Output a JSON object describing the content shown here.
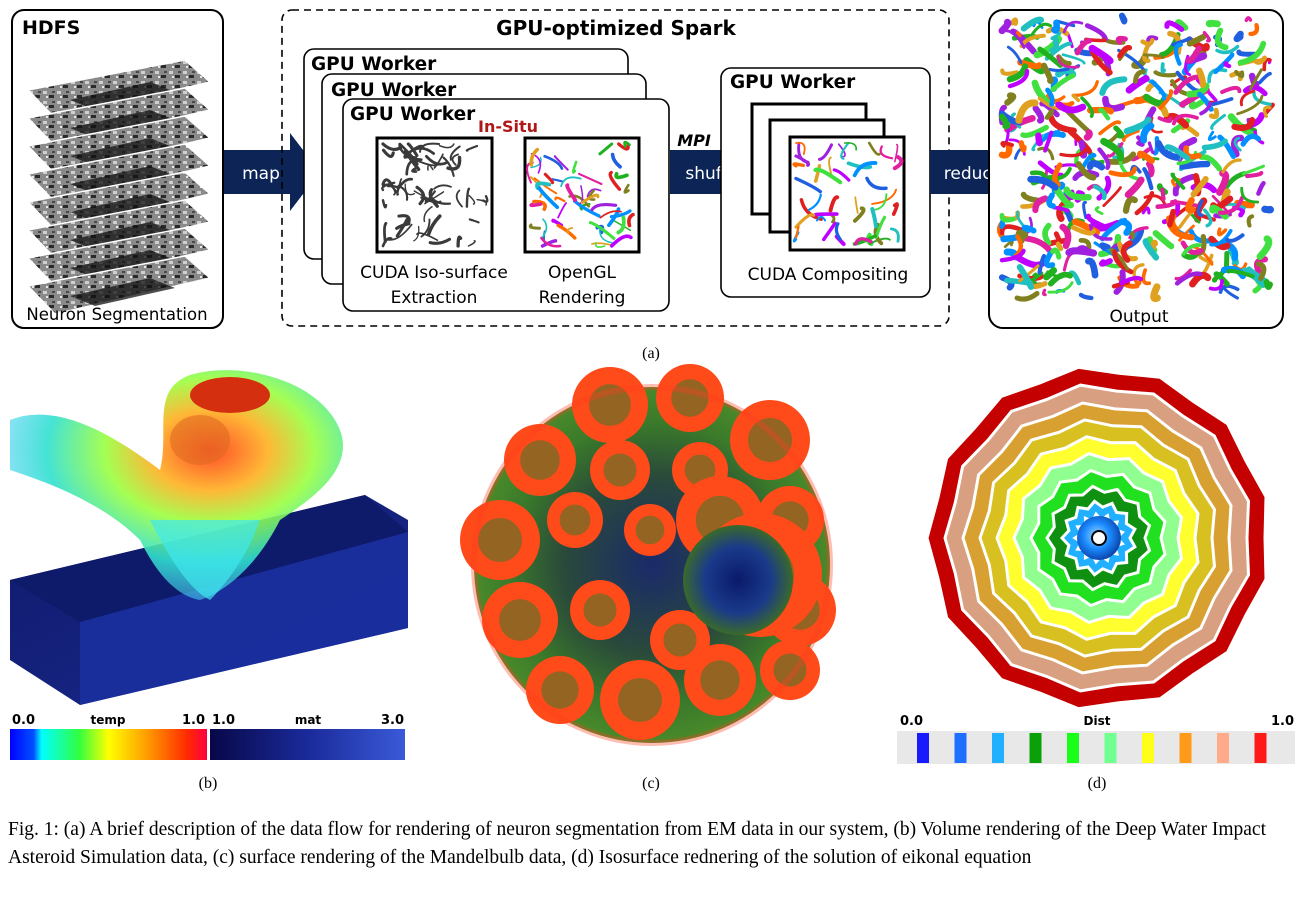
{
  "diagram": {
    "hdfs": {
      "title": "HDFS",
      "caption": "Neuron Segmentation"
    },
    "spark": {
      "title": "GPU-optimized Spark"
    },
    "workers": {
      "label": "GPU Worker",
      "in_situ": "In-Situ",
      "step1": [
        "CUDA Iso-surface",
        "Extraction"
      ],
      "step2": [
        "OpenGL",
        "Rendering"
      ]
    },
    "arrows": {
      "map": "map",
      "mpi": "MPI",
      "shuffle": "shuffle",
      "reduce": "reduce"
    },
    "compositor": {
      "title": "GPU Worker",
      "caption": "CUDA Compositing"
    },
    "output": {
      "caption": "Output"
    },
    "sublabel_a": "(a)"
  },
  "panels": {
    "b": {
      "label": "(b)",
      "legend_temp": {
        "min": "0.0",
        "name": "temp",
        "max": "1.0"
      },
      "legend_mat": {
        "min": "1.0",
        "name": "mat",
        "max": "3.0"
      }
    },
    "c": {
      "label": "(c)"
    },
    "d": {
      "label": "(d)",
      "legend": {
        "min": "0.0",
        "name": "Dist",
        "max": "1.0"
      },
      "swatch_colors": [
        "#1a1aff",
        "#1f6fff",
        "#1fb0ff",
        "#0aa00a",
        "#1aff1a",
        "#70ff90",
        "#ffff1a",
        "#ff9a1a",
        "#ffaa88",
        "#ff1a1a"
      ]
    }
  },
  "caption": "Fig. 1: (a) A brief description of the data flow for rendering of neuron segmentation from EM data in our system, (b) Volume rendering of the Deep Water Impact Asteroid Simulation data, (c) surface rendering of the Mandelbulb data, (d) Isosurface rednering of the solution of eikonal equation"
}
